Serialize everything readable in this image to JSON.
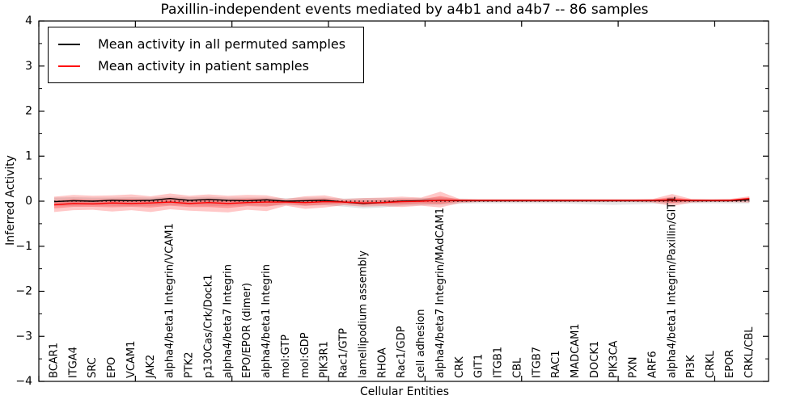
{
  "chart_data": {
    "type": "line",
    "title": "Paxillin-independent events mediated by a4b1 and a4b7 -- 86 samples",
    "xlabel": "Cellular Entities",
    "ylabel": "Inferred Activity",
    "ylim": [
      -4,
      4
    ],
    "yticks": [
      -4,
      -3,
      -2,
      -1,
      0,
      1,
      2,
      3,
      4
    ],
    "grid": false,
    "legend_position": "upper left",
    "zero_line": "dotted",
    "categories": [
      "BCAR1",
      "ITGA4",
      "SRC",
      "EPO",
      "VCAM1",
      "JAK2",
      "alpha4/beta1 Integrin/VCAM1",
      "PTK2",
      "p130Cas/Crk/Dock1",
      "alpha4/beta7 Integrin",
      "EPO/EPOR (dimer)",
      "alpha4/beta1 Integrin",
      "mol:GTP",
      "mol:GDP",
      "PIK3R1",
      "Rac1/GTP",
      "lamellipodium assembly",
      "RHOA",
      "Rac1/GDP",
      "cell adhesion",
      "alpha4/beta7 Integrin/MAdCAM1",
      "CRK",
      "GIT1",
      "ITGB1",
      "CBL",
      "ITGB7",
      "RAC1",
      "MADCAM1",
      "DOCK1",
      "PIK3CA",
      "PXN",
      "ARF6",
      "alpha4/beta1 Integrin/Paxillin/GIT1",
      "PI3K",
      "CRKL",
      "EPOR",
      "CRKL/CBL"
    ],
    "series": [
      {
        "name": "Mean activity in all permuted samples",
        "color": "#000000",
        "values": [
          -0.01,
          0.01,
          0.0,
          0.02,
          0.01,
          0.02,
          0.06,
          0.02,
          0.04,
          0.02,
          0.01,
          0.03,
          0.0,
          0.01,
          0.02,
          -0.02,
          -0.05,
          -0.03,
          0.0,
          0.01,
          0.02,
          0.01,
          0.01,
          0.01,
          0.01,
          0.01,
          0.01,
          0.01,
          0.01,
          0.01,
          0.01,
          0.01,
          0.02,
          0.01,
          0.01,
          0.01,
          0.03
        ]
      },
      {
        "name": "Mean activity in patient samples",
        "color": "#ff0000",
        "values": [
          -0.08,
          -0.05,
          -0.06,
          -0.04,
          -0.05,
          -0.04,
          -0.02,
          -0.05,
          -0.03,
          -0.05,
          -0.03,
          -0.02,
          -0.02,
          -0.03,
          -0.01,
          -0.02,
          -0.04,
          -0.03,
          -0.01,
          0.0,
          0.02,
          0.02,
          0.02,
          0.02,
          0.02,
          0.02,
          0.02,
          0.02,
          0.02,
          0.02,
          0.02,
          0.02,
          0.03,
          0.02,
          0.02,
          0.02,
          0.06
        ]
      }
    ],
    "bands": [
      {
        "name": "permuted-sample-range",
        "color": "#888888",
        "opacity": 0.22,
        "upper": [
          0.08,
          0.09,
          0.08,
          0.08,
          0.09,
          0.08,
          0.1,
          0.09,
          0.1,
          0.08,
          0.08,
          0.08,
          0.07,
          0.08,
          0.08,
          0.06,
          0.07,
          0.07,
          0.07,
          0.07,
          0.08,
          0.06,
          0.05,
          0.05,
          0.05,
          0.05,
          0.05,
          0.05,
          0.05,
          0.05,
          0.05,
          0.05,
          0.06,
          0.05,
          0.05,
          0.05,
          0.06
        ],
        "lower": [
          -0.1,
          -0.1,
          -0.09,
          -0.1,
          -0.1,
          -0.1,
          -0.08,
          -0.09,
          -0.1,
          -0.1,
          -0.09,
          -0.1,
          -0.09,
          -0.1,
          -0.09,
          -0.12,
          -0.16,
          -0.14,
          -0.1,
          -0.09,
          -0.08,
          -0.06,
          -0.05,
          -0.05,
          -0.05,
          -0.05,
          -0.05,
          -0.06,
          -0.07,
          -0.08,
          -0.07,
          -0.06,
          -0.05,
          -0.05,
          -0.05,
          -0.05,
          -0.05
        ]
      },
      {
        "name": "patient-sample-range",
        "color": "#ff0000",
        "opacity": 0.22,
        "inner_band_scale": 0.5,
        "inner_opacity": 0.25,
        "upper": [
          0.1,
          0.14,
          0.12,
          0.13,
          0.15,
          0.11,
          0.17,
          0.12,
          0.15,
          0.12,
          0.14,
          0.13,
          0.05,
          0.11,
          0.13,
          0.05,
          0.07,
          0.08,
          0.1,
          0.08,
          0.21,
          0.05,
          0.04,
          0.04,
          0.04,
          0.04,
          0.04,
          0.04,
          0.04,
          0.04,
          0.04,
          0.05,
          0.16,
          0.05,
          0.04,
          0.05,
          0.11
        ],
        "lower": [
          -0.24,
          -0.2,
          -0.19,
          -0.23,
          -0.2,
          -0.24,
          -0.18,
          -0.21,
          -0.23,
          -0.25,
          -0.19,
          -0.22,
          -0.1,
          -0.17,
          -0.14,
          -0.09,
          -0.12,
          -0.11,
          -0.13,
          -0.1,
          -0.14,
          -0.04,
          -0.02,
          -0.02,
          -0.02,
          -0.02,
          -0.02,
          -0.02,
          -0.02,
          -0.02,
          -0.02,
          -0.03,
          -0.11,
          -0.03,
          -0.02,
          -0.02,
          -0.03
        ]
      }
    ]
  }
}
